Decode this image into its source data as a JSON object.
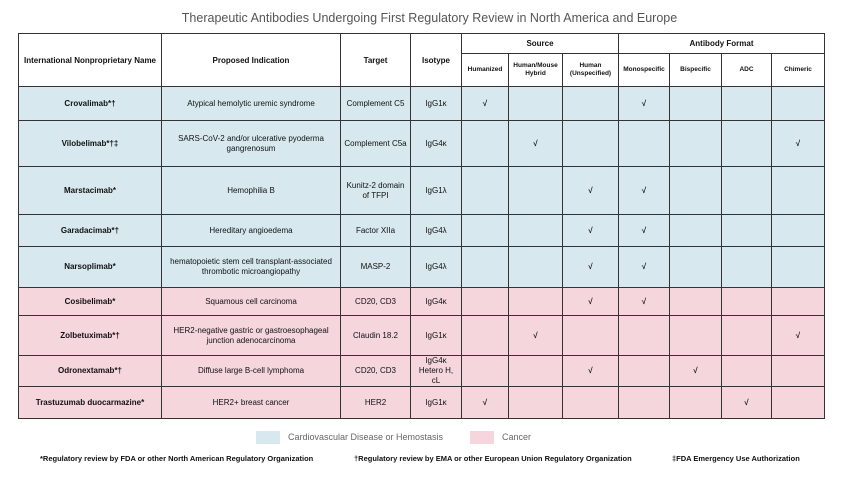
{
  "title": "Therapeutic Antibodies Undergoing First Regulatory Review in North America and Europe",
  "headers": {
    "inn": "International Nonproprietary Name",
    "indication": "Proposed Indication",
    "target": "Target",
    "isotype": "Isotype",
    "source_group": "Source",
    "format_group": "Antibody Format",
    "humanized": "Humanized",
    "human_mouse": "Human/Mouse Hybrid",
    "human_unspecified": "Human (Unspecified)",
    "monospecific": "Monospecific",
    "bispecific": "Bispecific",
    "adc": "ADC",
    "chimeric": "Chimeric"
  },
  "checkmark": "√",
  "rows": [
    {
      "name": "Crovalimab*†",
      "indication": "Atypical hemolytic uremic syndrome",
      "target": "Complement C5",
      "isotype": "IgG1κ",
      "category": "cardio",
      "humanized": "√",
      "human_mouse": "",
      "human_unspecified": "",
      "monospecific": "√",
      "bispecific": "",
      "adc": "",
      "chimeric": ""
    },
    {
      "name": "Vilobelimab*†‡",
      "indication": "SARS-CoV-2 and/or ulcerative pyoderma gangrenosum",
      "target": "Complement C5a",
      "isotype": "IgG4κ",
      "category": "cardio",
      "humanized": "",
      "human_mouse": "√",
      "human_unspecified": "",
      "monospecific": "",
      "bispecific": "",
      "adc": "",
      "chimeric": "√"
    },
    {
      "name": "Marstacimab*",
      "indication": "Hemophilia B",
      "target": "Kunitz-2 domain of TFPI",
      "isotype": "IgG1λ",
      "category": "cardio",
      "humanized": "",
      "human_mouse": "",
      "human_unspecified": "√",
      "monospecific": "√",
      "bispecific": "",
      "adc": "",
      "chimeric": ""
    },
    {
      "name": "Garadacimab*†",
      "indication": "Hereditary angioedema",
      "target": "Factor XIIa",
      "isotype": "IgG4λ",
      "category": "cardio",
      "humanized": "",
      "human_mouse": "",
      "human_unspecified": "√",
      "monospecific": "√",
      "bispecific": "",
      "adc": "",
      "chimeric": ""
    },
    {
      "name": "Narsoplimab*",
      "indication": "hematopoietic stem cell transplant-associated thrombotic microangiopathy",
      "target": "MASP-2",
      "isotype": "IgG4λ",
      "category": "cardio",
      "humanized": "",
      "human_mouse": "",
      "human_unspecified": "√",
      "monospecific": "√",
      "bispecific": "",
      "adc": "",
      "chimeric": ""
    },
    {
      "name": "Cosibelimab*",
      "indication": "Squamous cell carcinoma",
      "target": "CD20, CD3",
      "isotype": "IgG4κ",
      "category": "cancer",
      "humanized": "",
      "human_mouse": "",
      "human_unspecified": "√",
      "monospecific": "√",
      "bispecific": "",
      "adc": "",
      "chimeric": ""
    },
    {
      "name": "Zolbetuximab*†",
      "indication": "HER2-negative gastric or gastroesophageal junction adenocarcinoma",
      "target": "Claudin 18.2",
      "isotype": "IgG1κ",
      "category": "cancer",
      "humanized": "",
      "human_mouse": "√",
      "human_unspecified": "",
      "monospecific": "",
      "bispecific": "",
      "adc": "",
      "chimeric": "√"
    },
    {
      "name": "Odronextamab*†",
      "indication": "Diffuse large B-cell lymphoma",
      "target": "CD20, CD3",
      "isotype": "IgG4κ Hetero H, cL",
      "category": "cancer",
      "humanized": "",
      "human_mouse": "",
      "human_unspecified": "√",
      "monospecific": "",
      "bispecific": "√",
      "adc": "",
      "chimeric": ""
    },
    {
      "name": "Trastuzumab duocarmazine*",
      "indication": "HER2+ breast cancer",
      "target": "HER2",
      "isotype": "IgG1κ",
      "category": "cancer",
      "humanized": "√",
      "human_mouse": "",
      "human_unspecified": "",
      "monospecific": "",
      "bispecific": "",
      "adc": "√",
      "chimeric": ""
    }
  ],
  "legend": {
    "cardio_label": "Cardiovascular Disease or Hemostasis",
    "cardio_color": "#d7e9ef",
    "cancer_label": "Cancer",
    "cancer_color": "#f5d6dc"
  },
  "footnotes": {
    "star": "*Regulatory review by FDA or other North American Regulatory Organization",
    "dagger": "†Regulatory review by EMA or other European Union Regulatory Organization",
    "ddagger": "‡FDA Emergency Use Authorization"
  }
}
